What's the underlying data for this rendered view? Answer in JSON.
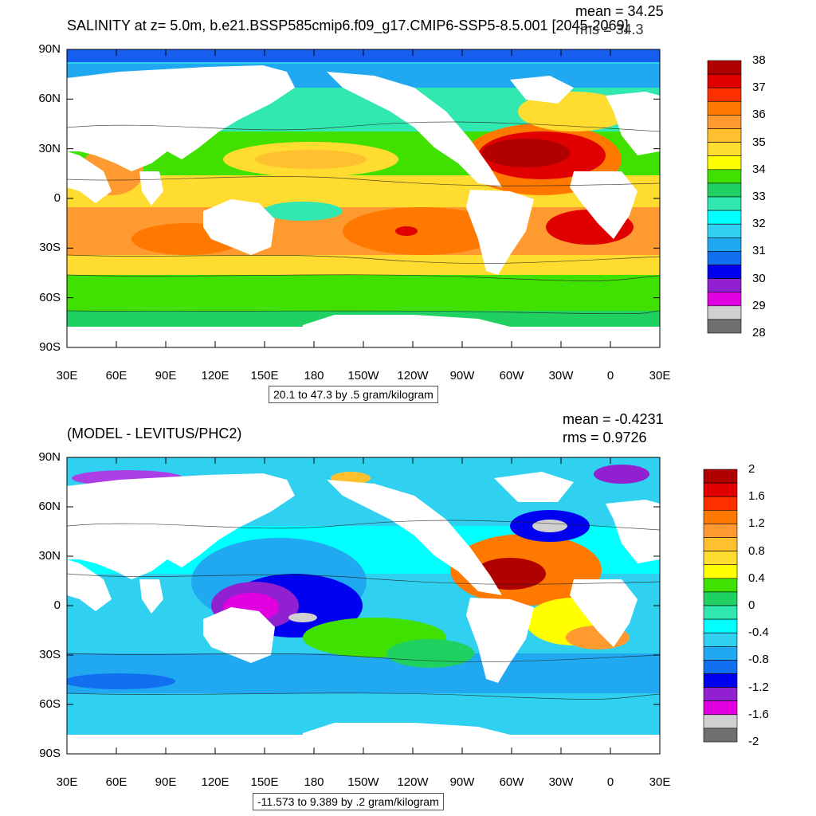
{
  "panels": [
    {
      "title": "SALINITY at z=   5.0m, b.e21.BSSP585cmip6.f09_g17.CMIP6-SSP5-8.5.001 [2045-2069]",
      "stats": {
        "mean": "mean = 34.25",
        "rms": "rms = 34.3"
      },
      "range_label": "20.1 to 47.3 by .5 gram/kilogram",
      "lat_ticks": [
        "90N",
        "60N",
        "30N",
        "0",
        "30S",
        "60S",
        "90S"
      ],
      "lon_ticks": [
        "30E",
        "60E",
        "90E",
        "120E",
        "150E",
        "180",
        "150W",
        "120W",
        "90W",
        "60W",
        "30W",
        "0",
        "30E"
      ],
      "colorbar": {
        "labels": [
          "38",
          "37",
          "36",
          "35",
          "34",
          "33",
          "32",
          "31",
          "30",
          "29",
          "28"
        ],
        "colors": [
          "#b00000",
          "#e00000",
          "#ff3000",
          "#ff7800",
          "#ff9a30",
          "#ffc030",
          "#ffdc30",
          "#ffff00",
          "#40e000",
          "#20d060",
          "#30e8b0",
          "#00ffff",
          "#30d0f0",
          "#20a8f0",
          "#1070f0",
          "#0000f0",
          "#9020d0",
          "#e000e0",
          "#d0d0d0",
          "#707070"
        ]
      }
    },
    {
      "title": "(MODEL - LEVITUS/PHC2)",
      "stats": {
        "mean": "mean = -0.4231",
        "rms": "rms = 0.9726"
      },
      "range_label": "-11.573 to 9.389 by .2 gram/kilogram",
      "lat_ticks": [
        "90N",
        "60N",
        "30N",
        "0",
        "30S",
        "60S",
        "90S"
      ],
      "lon_ticks": [
        "30E",
        "60E",
        "90E",
        "120E",
        "150E",
        "180",
        "150W",
        "120W",
        "90W",
        "60W",
        "30W",
        "0",
        "30E"
      ],
      "colorbar": {
        "labels": [
          "2",
          "1.6",
          "1.2",
          "0.8",
          "0.4",
          "0",
          "-0.4",
          "-0.8",
          "-1.2",
          "-1.6",
          "-2"
        ],
        "colors": [
          "#b00000",
          "#e00000",
          "#ff3000",
          "#ff7800",
          "#ff9a30",
          "#ffc030",
          "#ffdc30",
          "#ffff00",
          "#40e000",
          "#20d060",
          "#30e8b0",
          "#00ffff",
          "#30d0f0",
          "#20a8f0",
          "#1070f0",
          "#0000f0",
          "#9020d0",
          "#e000e0",
          "#d0d0d0",
          "#707070"
        ]
      }
    }
  ]
}
